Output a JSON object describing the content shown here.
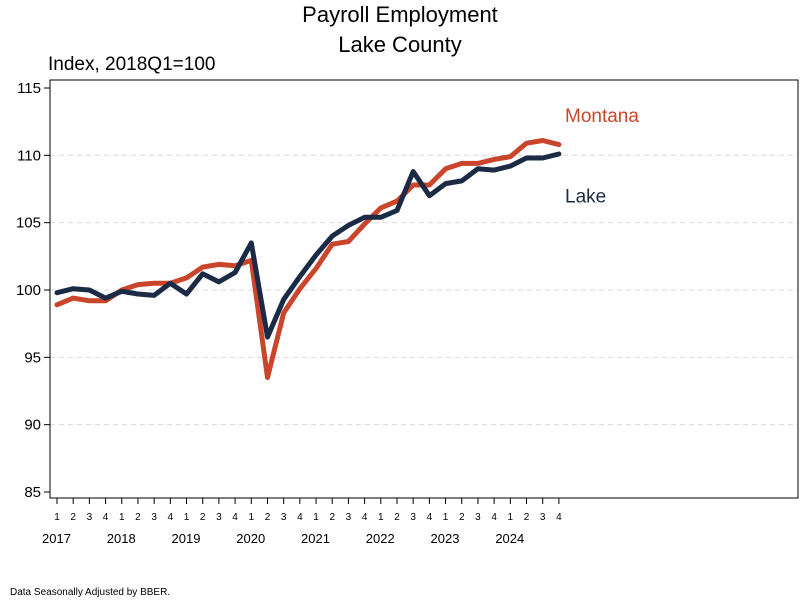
{
  "chart_data": {
    "type": "line",
    "title": "Payroll Employment",
    "subtitle": "Lake County",
    "ylabel": "Index, 2018Q1=100",
    "xlabel": "",
    "ylim": [
      85,
      115
    ],
    "yticks": [
      85,
      90,
      95,
      100,
      105,
      110,
      115
    ],
    "grid": "horizontal dashed",
    "years": [
      "2017",
      "2018",
      "2019",
      "2020",
      "2021",
      "2022",
      "2023",
      "2024"
    ],
    "quarter_ticks": [
      "1",
      "2",
      "3",
      "4"
    ],
    "x": [
      "2017Q1",
      "2017Q2",
      "2017Q3",
      "2017Q4",
      "2018Q1",
      "2018Q2",
      "2018Q3",
      "2018Q4",
      "2019Q1",
      "2019Q2",
      "2019Q3",
      "2019Q4",
      "2020Q1",
      "2020Q2",
      "2020Q3",
      "2020Q4",
      "2021Q1",
      "2021Q2",
      "2021Q3",
      "2021Q4",
      "2022Q1",
      "2022Q2",
      "2022Q3",
      "2022Q4",
      "2023Q1",
      "2023Q2",
      "2023Q3",
      "2023Q4",
      "2024Q1",
      "2024Q2",
      "2024Q3",
      "2024Q4"
    ],
    "series": [
      {
        "name": "Montana",
        "color": "#C9462C",
        "values": [
          98.9,
          99.4,
          99.2,
          99.2,
          100.0,
          100.4,
          100.5,
          100.5,
          100.9,
          101.7,
          101.9,
          101.8,
          102.2,
          93.5,
          98.3,
          100.1,
          101.6,
          103.4,
          103.6,
          104.9,
          106.1,
          106.6,
          107.8,
          107.8,
          109.0,
          109.4,
          109.4,
          109.7,
          109.9,
          110.9,
          111.1,
          110.8
        ]
      },
      {
        "name": "Lake",
        "color": "#1B2A45",
        "values": [
          99.8,
          100.1,
          100.0,
          99.4,
          99.9,
          99.7,
          99.6,
          100.5,
          99.7,
          101.2,
          100.6,
          101.3,
          103.5,
          96.5,
          99.3,
          101.0,
          102.6,
          104.0,
          104.8,
          105.4,
          105.4,
          105.9,
          108.8,
          107.0,
          107.9,
          108.1,
          109.0,
          108.9,
          109.2,
          109.8,
          109.8,
          110.1
        ]
      }
    ]
  },
  "footnote": "Data Seasonally Adjusted by BBER."
}
